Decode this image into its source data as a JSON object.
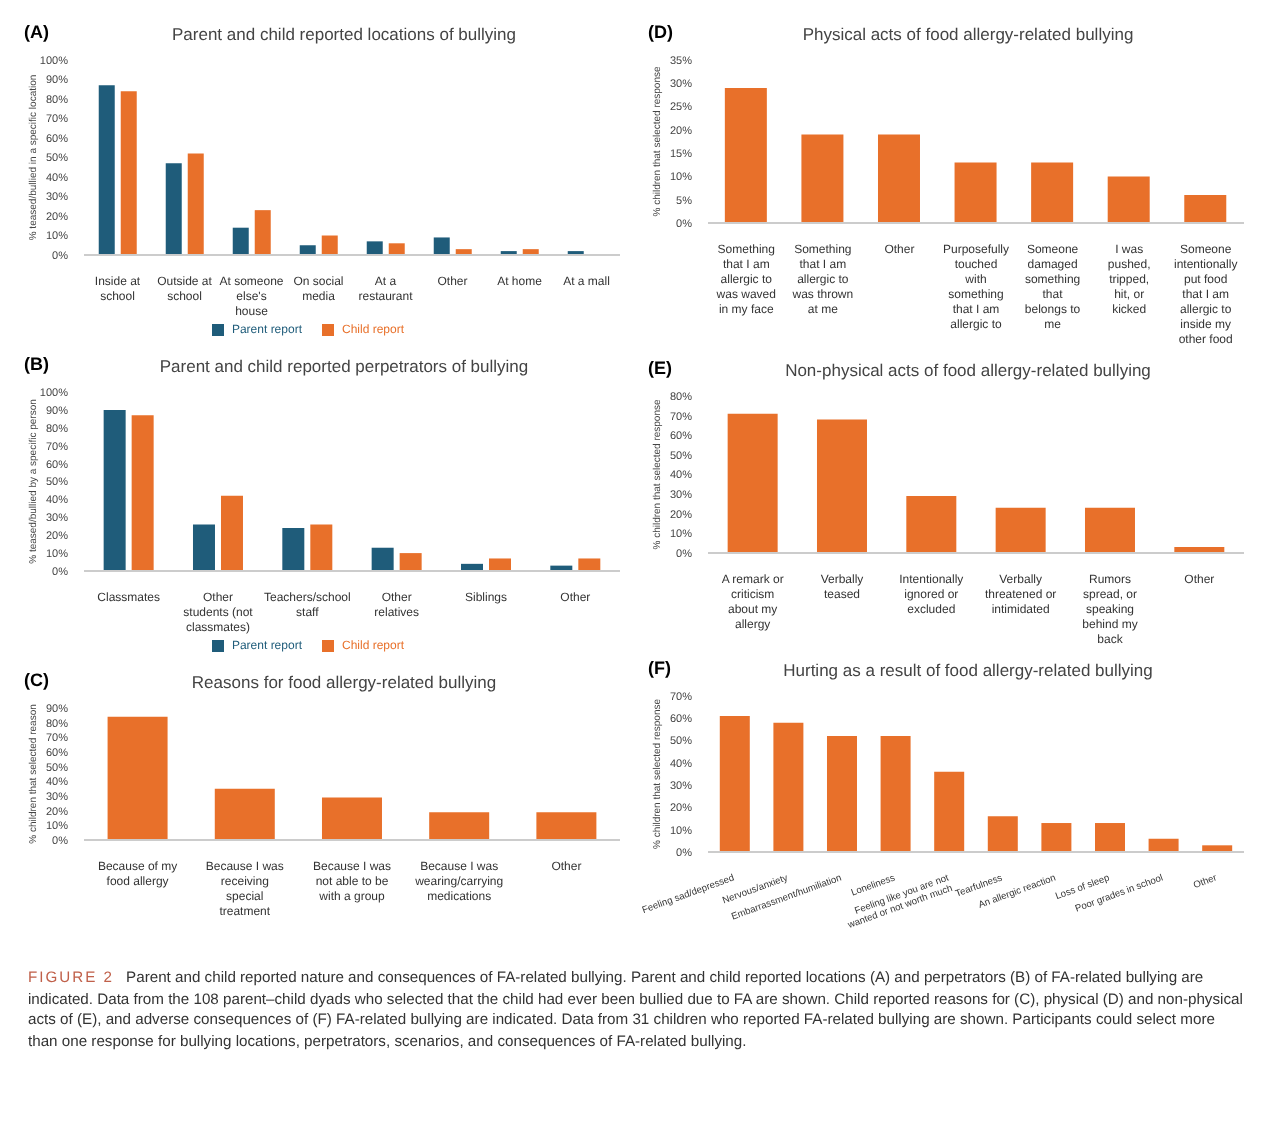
{
  "chart_data": [
    {
      "type": "bar",
      "title": "Parent and child reported locations of bullying",
      "annotations": [
        "(A)"
      ],
      "ylabel": "% teased/bullied in a specific location",
      "categories": [
        "Inside at school",
        "Outside at school",
        "At someone else's house",
        "On social media",
        "At a restaurant",
        "Other",
        "At home",
        "At a mall"
      ],
      "series": [
        {
          "name": "Parent report",
          "color": "#1f5c7a",
          "values": [
            87,
            47,
            14,
            5,
            7,
            9,
            2,
            2
          ]
        },
        {
          "name": "Child report",
          "color": "#e8702a",
          "values": [
            84,
            52,
            23,
            10,
            6,
            3,
            3,
            0
          ]
        }
      ],
      "ylim": [
        0,
        100
      ],
      "yticks": [
        {
          "value": 0,
          "label": "0%"
        },
        {
          "value": 10,
          "label": "10%"
        },
        {
          "value": 20,
          "label": "20%"
        },
        {
          "value": 30,
          "label": "30%"
        },
        {
          "value": 40,
          "label": "40%"
        },
        {
          "value": 50,
          "label": "50%"
        },
        {
          "value": 60,
          "label": "60%"
        },
        {
          "value": 70,
          "label": "70%"
        },
        {
          "value": 80,
          "label": "80%"
        },
        {
          "value": 90,
          "label": "90%"
        },
        {
          "value": 100,
          "label": "100%"
        }
      ],
      "legend": "bottom"
    },
    {
      "type": "bar",
      "title": "Parent and child reported perpetrators of bullying",
      "annotations": [
        "(B)"
      ],
      "ylabel": "% teased/bullied by a specific person",
      "categories": [
        "Classmates",
        "Other students (not classmates)",
        "Teachers/school staff",
        "Other relatives",
        "Siblings",
        "Other"
      ],
      "series": [
        {
          "name": "Parent report",
          "color": "#1f5c7a",
          "values": [
            90,
            26,
            24,
            13,
            4,
            3
          ]
        },
        {
          "name": "Child report",
          "color": "#e8702a",
          "values": [
            87,
            42,
            26,
            10,
            7,
            7
          ]
        }
      ],
      "ylim": [
        0,
        100
      ],
      "yticks": [
        {
          "value": 0,
          "label": "0%"
        },
        {
          "value": 10,
          "label": "10%"
        },
        {
          "value": 20,
          "label": "20%"
        },
        {
          "value": 30,
          "label": "30%"
        },
        {
          "value": 40,
          "label": "40%"
        },
        {
          "value": 50,
          "label": "50%"
        },
        {
          "value": 60,
          "label": "60%"
        },
        {
          "value": 70,
          "label": "70%"
        },
        {
          "value": 80,
          "label": "80%"
        },
        {
          "value": 90,
          "label": "90%"
        },
        {
          "value": 100,
          "label": "100%"
        }
      ],
      "legend": "bottom"
    },
    {
      "type": "bar",
      "title": "Reasons for food allergy-related bullying",
      "annotations": [
        "(C)"
      ],
      "ylabel": "% children that selected reason",
      "categories": [
        "Because of my food allergy",
        "Because I was receiving special treatment",
        "Because I was not able to be with a group",
        "Because I was wearing/carrying medications",
        "Other"
      ],
      "color": "#e8702a",
      "values": [
        84,
        35,
        29,
        19,
        19
      ],
      "ylim": [
        0,
        90
      ],
      "yticks": [
        {
          "value": 0,
          "label": "0%"
        },
        {
          "value": 10,
          "label": "10%"
        },
        {
          "value": 20,
          "label": "20%"
        },
        {
          "value": 30,
          "label": "30%"
        },
        {
          "value": 40,
          "label": "40%"
        },
        {
          "value": 50,
          "label": "50%"
        },
        {
          "value": 60,
          "label": "60%"
        },
        {
          "value": 70,
          "label": "70%"
        },
        {
          "value": 80,
          "label": "80%"
        },
        {
          "value": 90,
          "label": "90%"
        }
      ]
    },
    {
      "type": "bar",
      "title": "Physical acts of food allergy-related bullying",
      "annotations": [
        "(D)"
      ],
      "ylabel": "% children that selected response",
      "categories": [
        "Something that I am allergic to was waved in my face",
        "Something that I am allergic to was thrown at me",
        "Other",
        "Purposefully touched with something that I am allergic to",
        "Someone damaged something that belongs to me",
        "I was pushed, tripped, hit, or kicked",
        "Someone intentionally put food that I am allergic to inside my other food"
      ],
      "color": "#e8702a",
      "values": [
        29,
        19,
        19,
        13,
        13,
        10,
        6
      ],
      "ylim": [
        0,
        35
      ],
      "yticks": [
        {
          "value": 0,
          "label": "0%"
        },
        {
          "value": 5,
          "label": "5%"
        },
        {
          "value": 10,
          "label": "10%"
        },
        {
          "value": 15,
          "label": "15%"
        },
        {
          "value": 20,
          "label": "20%"
        },
        {
          "value": 25,
          "label": "25%"
        },
        {
          "value": 30,
          "label": "30%"
        },
        {
          "value": 35,
          "label": "35%"
        }
      ]
    },
    {
      "type": "bar",
      "title": "Non-physical acts of food allergy-related bullying",
      "annotations": [
        "(E)"
      ],
      "ylabel": "% children that selected response",
      "categories": [
        "A remark or criticism about my allergy",
        "Verbally teased",
        "Intentionally ignored or excluded",
        "Verbally threatened or intimidated",
        "Rumors spread, or speaking behind my back",
        "Other"
      ],
      "color": "#e8702a",
      "values": [
        71,
        68,
        29,
        23,
        23,
        3
      ],
      "ylim": [
        0,
        80
      ],
      "yticks": [
        {
          "value": 0,
          "label": "0%"
        },
        {
          "value": 10,
          "label": "10%"
        },
        {
          "value": 20,
          "label": "20%"
        },
        {
          "value": 30,
          "label": "30%"
        },
        {
          "value": 40,
          "label": "40%"
        },
        {
          "value": 50,
          "label": "50%"
        },
        {
          "value": 60,
          "label": "60%"
        },
        {
          "value": 70,
          "label": "70%"
        },
        {
          "value": 80,
          "label": "80%"
        }
      ]
    },
    {
      "type": "bar",
      "title": "Hurting as a result of food allergy-related bullying",
      "annotations": [
        "(F)"
      ],
      "ylabel": "% children that selected response",
      "categories": [
        "Feeling sad/depressed",
        "Nervous/anxiety",
        "Embarrassment/humiliation",
        "Loneliness",
        "Feeling like you are not wanted or not worth much",
        "Tearfulness",
        "An allergic reaction",
        "Loss of sleep",
        "Poor grades in school",
        "Other"
      ],
      "color": "#e8702a",
      "values": [
        61,
        58,
        52,
        52,
        36,
        16,
        13,
        13,
        6,
        3
      ],
      "ylim": [
        0,
        70
      ],
      "yticks": [
        {
          "value": 0,
          "label": "0%"
        },
        {
          "value": 10,
          "label": "10%"
        },
        {
          "value": 20,
          "label": "20%"
        },
        {
          "value": 30,
          "label": "30%"
        },
        {
          "value": 40,
          "label": "40%"
        },
        {
          "value": 50,
          "label": "50%"
        },
        {
          "value": 60,
          "label": "60%"
        },
        {
          "value": 70,
          "label": "70%"
        }
      ]
    },
    {
      "type": "other",
      "annotations": [
        "FIGURE 2",
        "Parent and child reported nature and consequences of FA-related bullying. Parent and child reported locations (A) and perpetrators (B) of FA-related bullying are indicated. Data from the 108 parent–child dyads who selected that the child had ever been bullied due to FA are shown. Child reported reasons for (C), physical (D) and non-physical acts of (E), and adverse consequences of (F) FA-related bullying are indicated. Data from 31 children who reported FA-related bullying are shown. Participants could select more than one response for bullying locations, perpetrators, scenarios, and consequences of FA-related bullying."
      ]
    }
  ]
}
